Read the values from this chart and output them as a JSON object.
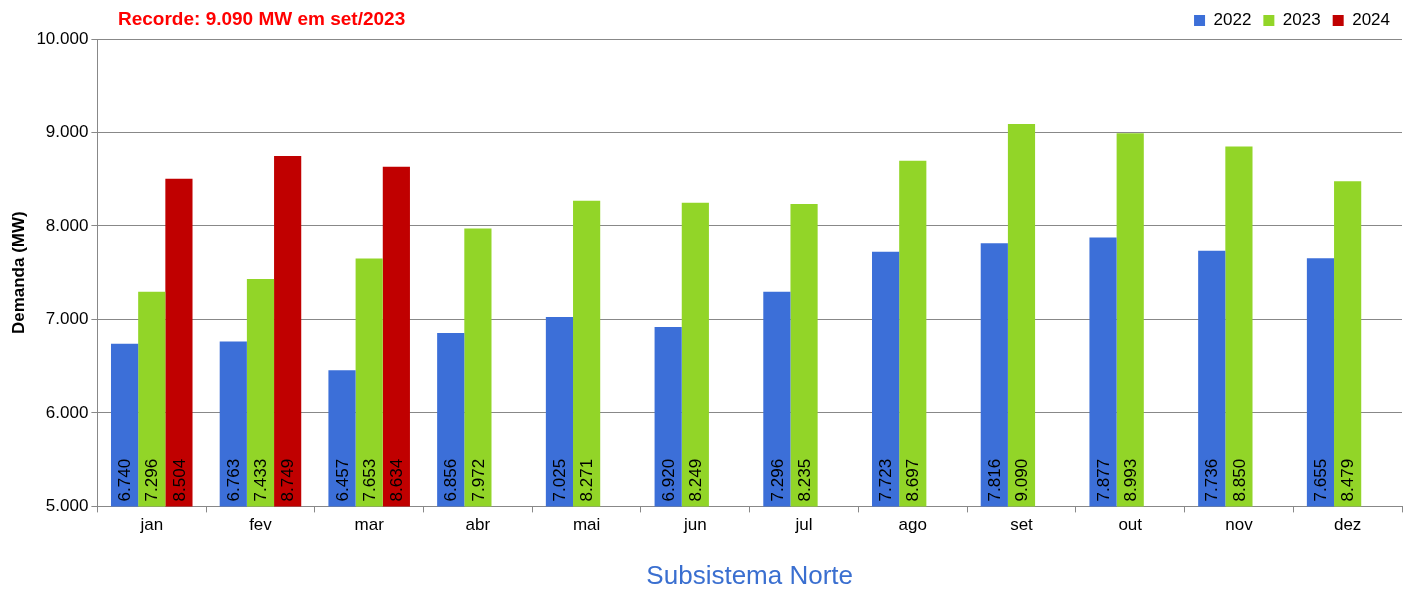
{
  "chart_data": {
    "type": "bar",
    "title": "Recorde: 9.090 MW em set/2023",
    "xlabel": "Subsistema Norte",
    "ylabel": "Demanda (MW)",
    "categories": [
      "jan",
      "fev",
      "mar",
      "abr",
      "mai",
      "jun",
      "jul",
      "ago",
      "set",
      "out",
      "nov",
      "dez"
    ],
    "series": [
      {
        "name": "2022",
        "color": "#3c6fd8",
        "values": [
          6740,
          6763,
          6457,
          6856,
          7025,
          6920,
          7296,
          7723,
          7816,
          7877,
          7736,
          7655
        ],
        "value_labels": [
          "6.740",
          "6.763",
          "6.457",
          "6.856",
          "7.025",
          "6.920",
          "7.296",
          "7.723",
          "7.816",
          "7.877",
          "7.736",
          "7.655"
        ]
      },
      {
        "name": "2023",
        "color": "#92d528",
        "values": [
          7296,
          7433,
          7653,
          7972,
          8271,
          8249,
          8235,
          8697,
          9090,
          8993,
          8850,
          8479
        ],
        "value_labels": [
          "7.296",
          "7.433",
          "7.653",
          "7.972",
          "8.271",
          "8.249",
          "8.235",
          "8.697",
          "9.090",
          "8.993",
          "8.850",
          "8.479"
        ]
      },
      {
        "name": "2024",
        "color": "#c00000",
        "values": [
          8504,
          8749,
          8634,
          null,
          null,
          null,
          null,
          null,
          null,
          null,
          null,
          null
        ],
        "value_labels": [
          "8.504",
          "8.749",
          "8.634",
          null,
          null,
          null,
          null,
          null,
          null,
          null,
          null,
          null
        ]
      }
    ],
    "ylim": [
      5000,
      10000
    ],
    "yticks": [
      {
        "value": 5000,
        "label": "5.000"
      },
      {
        "value": 6000,
        "label": "6.000"
      },
      {
        "value": 7000,
        "label": "7.000"
      },
      {
        "value": 8000,
        "label": "8.000"
      },
      {
        "value": 9000,
        "label": "9.000"
      },
      {
        "value": 10000,
        "label": "10.000"
      }
    ],
    "grid": "y",
    "legend": "top right"
  }
}
